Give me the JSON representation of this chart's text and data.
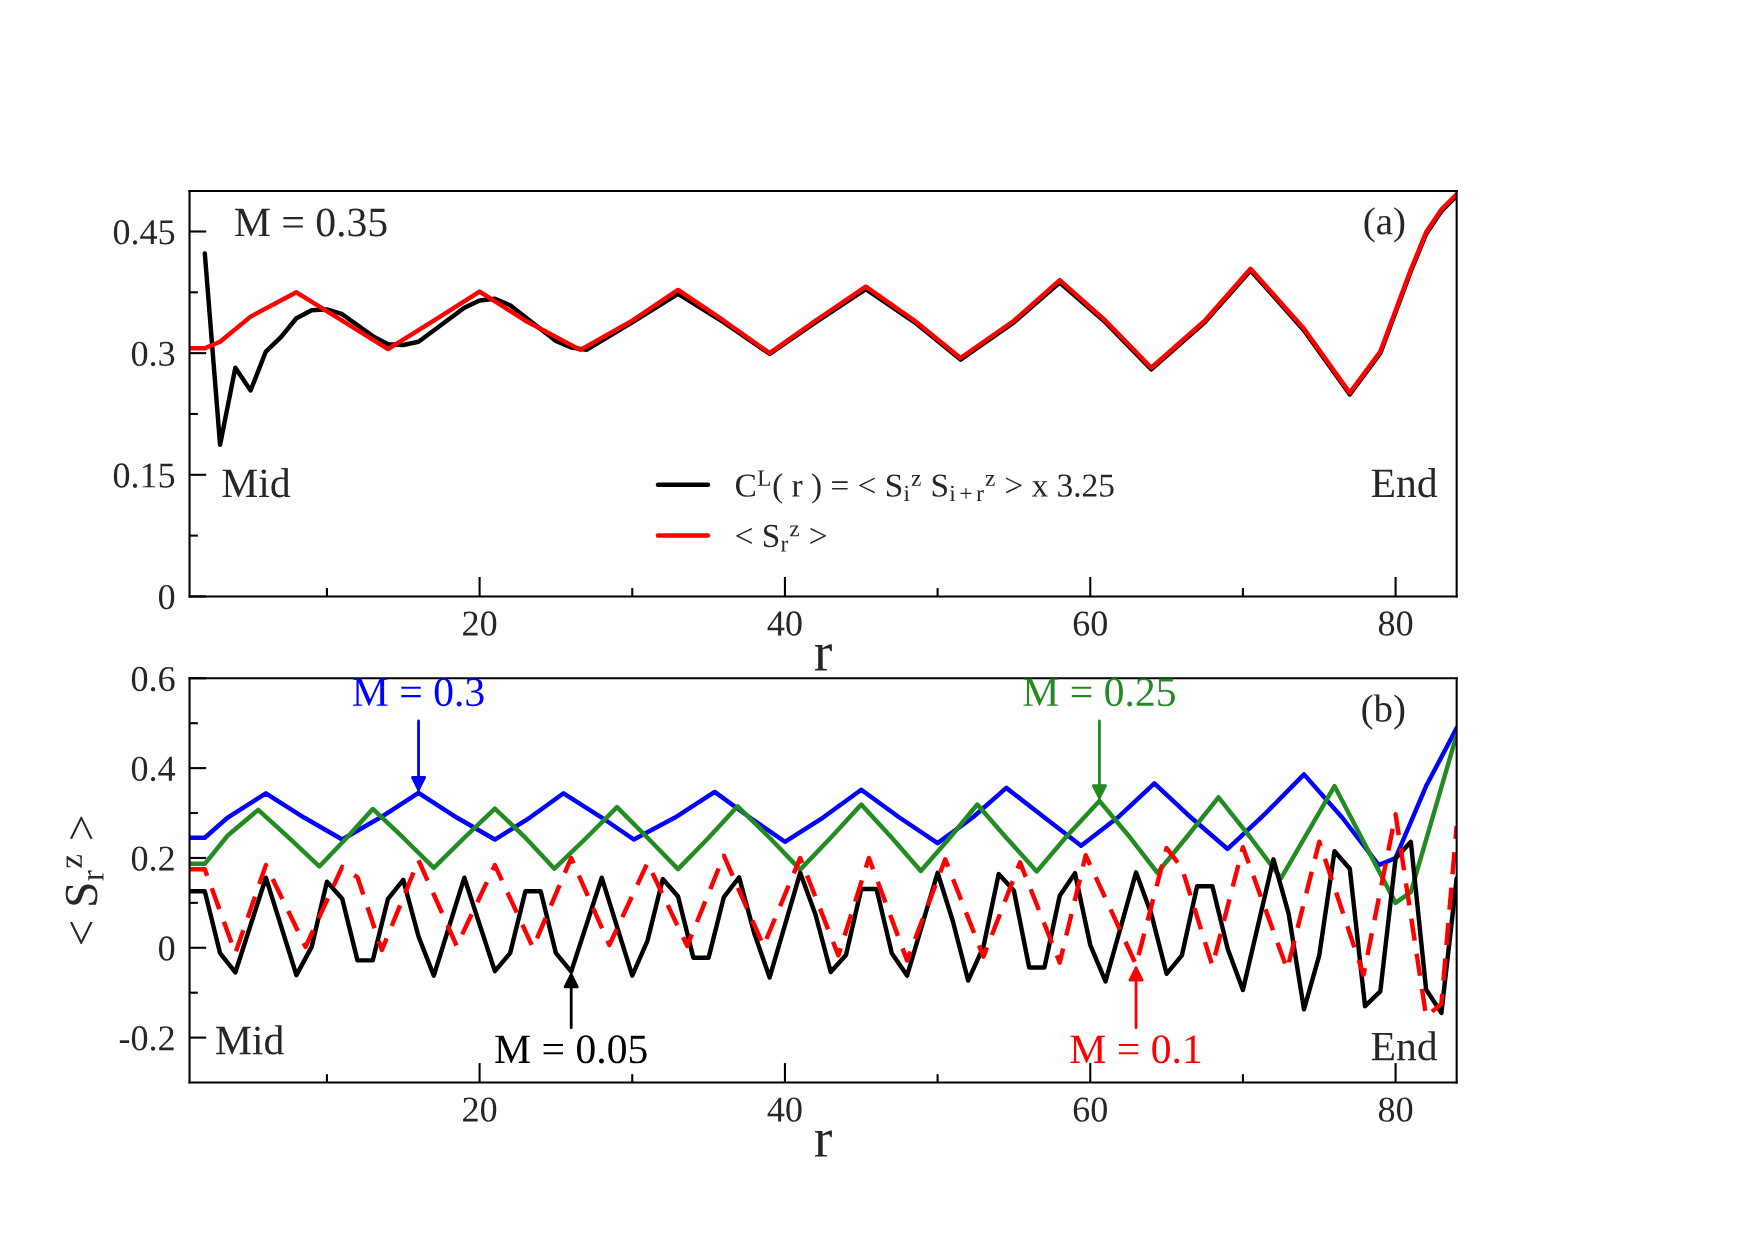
{
  "chart_data": [
    {
      "type": "line",
      "xlabel": "r",
      "xlim": [
        1,
        84
      ],
      "ylim": [
        0,
        0.5
      ],
      "xticks": [
        {
          "value": 10,
          "label": null
        },
        20,
        {
          "value": 30,
          "label": null
        },
        40,
        {
          "value": 50,
          "label": null
        },
        60,
        {
          "value": 70,
          "label": null
        },
        80
      ],
      "yticks": [
        0,
        {
          "value": 0.075,
          "label": null
        },
        0.15,
        {
          "value": 0.225,
          "label": null
        },
        0.3,
        {
          "value": 0.375,
          "label": null
        },
        0.45
      ],
      "legend": "bottom",
      "grid": false,
      "annotations": [
        "M = 0.35",
        "Mid",
        "End",
        "(a)"
      ],
      "series": [
        {
          "name": "C$^{L}$( r ) = < S$_{i}$$^{z}$ S$_{i+r}$$^{z}$ > x 3.25",
          "color": "#000000",
          "x": [
            2,
            3,
            4,
            5,
            6,
            7,
            8,
            9,
            10,
            11,
            13,
            14,
            15,
            16,
            19,
            20,
            21,
            22,
            25,
            26,
            27,
            30,
            33,
            36,
            39,
            42,
            45.3,
            48.5,
            51.5,
            55,
            58,
            61,
            64,
            67.5,
            70.5,
            74,
            77,
            79,
            81,
            82,
            83,
            84
          ],
          "values": [
            0.423,
            0.187,
            0.282,
            0.254,
            0.302,
            0.32,
            0.343,
            0.353,
            0.354,
            0.348,
            0.321,
            0.311,
            0.31,
            0.314,
            0.356,
            0.365,
            0.367,
            0.359,
            0.315,
            0.307,
            0.304,
            0.338,
            0.373,
            0.338,
            0.299,
            0.338,
            0.379,
            0.338,
            0.292,
            0.338,
            0.387,
            0.338,
            0.28,
            0.338,
            0.402,
            0.328,
            0.249,
            0.3,
            0.401,
            0.447,
            0.475,
            0.494
          ]
        },
        {
          "name": "< S$_{r}$$^{z}$ >",
          "color": "#ff0000",
          "x": [
            1,
            2,
            3,
            5,
            8,
            11,
            14,
            17,
            20,
            23,
            26.6,
            30,
            33,
            36,
            39,
            42,
            45.3,
            48.5,
            51.5,
            55,
            58,
            61,
            64,
            67.5,
            70.5,
            74,
            77,
            79,
            81,
            82,
            83,
            84
          ],
          "values": [
            0.306,
            0.306,
            0.314,
            0.345,
            0.375,
            0.34,
            0.305,
            0.34,
            0.376,
            0.34,
            0.304,
            0.34,
            0.378,
            0.34,
            0.3,
            0.34,
            0.382,
            0.34,
            0.294,
            0.34,
            0.39,
            0.34,
            0.282,
            0.34,
            0.404,
            0.33,
            0.251,
            0.302,
            0.403,
            0.449,
            0.477,
            0.496
          ]
        }
      ]
    },
    {
      "type": "line",
      "xlabel": "r",
      "ylabel": "< S$_{r}$$^{z}$ >",
      "xlim": [
        1,
        84
      ],
      "ylim": [
        -0.3,
        0.6
      ],
      "xticks": [
        {
          "value": 10,
          "label": null
        },
        20,
        {
          "value": 30,
          "label": null
        },
        40,
        {
          "value": 50,
          "label": null
        },
        60,
        {
          "value": 70,
          "label": null
        },
        80
      ],
      "yticks": [
        -0.2,
        {
          "value": -0.1,
          "label": null
        },
        0,
        {
          "value": 0.1,
          "label": null
        },
        0.2,
        {
          "value": 0.3,
          "label": null
        },
        0.4,
        {
          "value": 0.5,
          "label": null
        },
        0.6
      ],
      "grid": false,
      "annotations": [
        "Mid",
        "End",
        "(b)",
        {
          "text": "M = 0.3",
          "x": 16,
          "y": 0.345
        },
        {
          "text": "M = 0.25",
          "x": 60.6,
          "y": 0.327
        },
        {
          "text": "M = 0.05",
          "x": 26,
          "y": -0.053
        },
        {
          "text": "M = 0.1",
          "x": 63,
          "y": -0.038
        }
      ],
      "series": [
        {
          "color": "#0000ff",
          "line_style": "solid",
          "x": [
            1,
            2,
            3.5,
            6,
            8.5,
            11,
            13.5,
            16,
            18.5,
            21,
            23.3,
            25.5,
            28,
            30.1,
            32.8,
            35.4,
            37.7,
            40,
            42.5,
            45,
            47.5,
            50,
            52.3,
            54.5,
            57,
            59.4,
            61.8,
            64.2,
            66.6,
            69,
            71.5,
            74,
            76.5,
            78.9,
            80,
            82,
            84
          ],
          "values": [
            0.245,
            0.245,
            0.29,
            0.344,
            0.29,
            0.241,
            0.29,
            0.345,
            0.29,
            0.241,
            0.29,
            0.344,
            0.29,
            0.241,
            0.29,
            0.347,
            0.29,
            0.236,
            0.29,
            0.352,
            0.29,
            0.233,
            0.29,
            0.356,
            0.29,
            0.227,
            0.29,
            0.366,
            0.29,
            0.22,
            0.3,
            0.386,
            0.29,
            0.184,
            0.2,
            0.36,
            0.489
          ]
        },
        {
          "color": "#228b22",
          "line_style": "solid",
          "x": [
            1,
            2,
            3.5,
            5.5,
            7.5,
            9.5,
            11.3,
            13,
            15,
            17,
            19,
            21,
            23,
            24.9,
            27,
            29,
            31,
            33,
            35,
            36.9,
            39,
            41,
            43,
            45,
            47,
            48.9,
            50.8,
            52.6,
            54.5,
            56.5,
            58.5,
            60.6,
            62.5,
            64.4,
            66.4,
            68.4,
            70.5,
            72.5,
            74.3,
            76,
            78,
            80,
            81,
            84
          ],
          "values": [
            0.187,
            0.187,
            0.25,
            0.307,
            0.245,
            0.181,
            0.245,
            0.309,
            0.245,
            0.178,
            0.245,
            0.31,
            0.245,
            0.176,
            0.245,
            0.313,
            0.245,
            0.175,
            0.245,
            0.315,
            0.245,
            0.174,
            0.245,
            0.319,
            0.245,
            0.171,
            0.245,
            0.319,
            0.245,
            0.17,
            0.25,
            0.327,
            0.25,
            0.167,
            0.25,
            0.335,
            0.245,
            0.155,
            0.26,
            0.36,
            0.23,
            0.1,
            0.124,
            0.474
          ]
        },
        {
          "color": "#000000",
          "line_style": "solid",
          "x": [
            1,
            2,
            3,
            4,
            6,
            8,
            9,
            10,
            11,
            12,
            13,
            14,
            15,
            16,
            17,
            19,
            21,
            22,
            23,
            24,
            25,
            26,
            28,
            30,
            31,
            32,
            33,
            34,
            35,
            36,
            37,
            38,
            39,
            41,
            42,
            43,
            44,
            45,
            46,
            47,
            48,
            50,
            51,
            52,
            53,
            54,
            55,
            56,
            57,
            58,
            59,
            60,
            61,
            63,
            64,
            65,
            66,
            67,
            68,
            69,
            70,
            72,
            73,
            74,
            75,
            76,
            77,
            78,
            79,
            80,
            81,
            82,
            83,
            84
          ],
          "values": [
            0.126,
            0.126,
            -0.012,
            -0.055,
            0.156,
            -0.061,
            0.002,
            0.147,
            0.109,
            -0.028,
            -0.028,
            0.109,
            0.151,
            0.025,
            -0.062,
            0.156,
            -0.052,
            -0.012,
            0.126,
            0.126,
            -0.012,
            -0.053,
            0.156,
            -0.062,
            0.016,
            0.153,
            0.114,
            -0.022,
            -0.022,
            0.113,
            0.157,
            0.031,
            -0.066,
            0.167,
            0.074,
            -0.054,
            -0.016,
            0.131,
            0.131,
            -0.012,
            -0.062,
            0.167,
            0.059,
            -0.073,
            0.002,
            0.164,
            0.127,
            -0.044,
            -0.044,
            0.116,
            0.166,
            0.006,
            -0.075,
            0.168,
            0.075,
            -0.058,
            -0.017,
            0.137,
            0.137,
            -0.002,
            -0.094,
            0.197,
            0.075,
            -0.137,
            -0.017,
            0.215,
            0.176,
            -0.13,
            -0.097,
            0.199,
            0.236,
            -0.093,
            -0.145,
            0.154
          ]
        },
        {
          "color": "#ff0000",
          "line_style": "dashed",
          "x": [
            1,
            2,
            4,
            6,
            8.6,
            11,
            12,
            13.6,
            16,
            18.5,
            21,
            23.5,
            26,
            28.5,
            31,
            33.6,
            36,
            38.6,
            41,
            43.5,
            45.5,
            48,
            50.5,
            53,
            55.4,
            58,
            59.7,
            63,
            65,
            66,
            68,
            70,
            72.9,
            75,
            77.9,
            80,
            82,
            83,
            84
          ],
          "values": [
            0.175,
            0.175,
            -0.012,
            0.184,
            0.002,
            0.18,
            0.157,
            -0.005,
            0.195,
            0.004,
            0.184,
            0.0,
            0.2,
            0.006,
            0.189,
            0.004,
            0.205,
            0.004,
            0.2,
            -0.017,
            0.2,
            -0.028,
            0.197,
            -0.02,
            0.19,
            -0.033,
            0.206,
            -0.038,
            0.222,
            0.178,
            -0.04,
            0.224,
            -0.048,
            0.236,
            -0.06,
            0.297,
            -0.153,
            -0.125,
            0.271
          ]
        }
      ]
    }
  ]
}
